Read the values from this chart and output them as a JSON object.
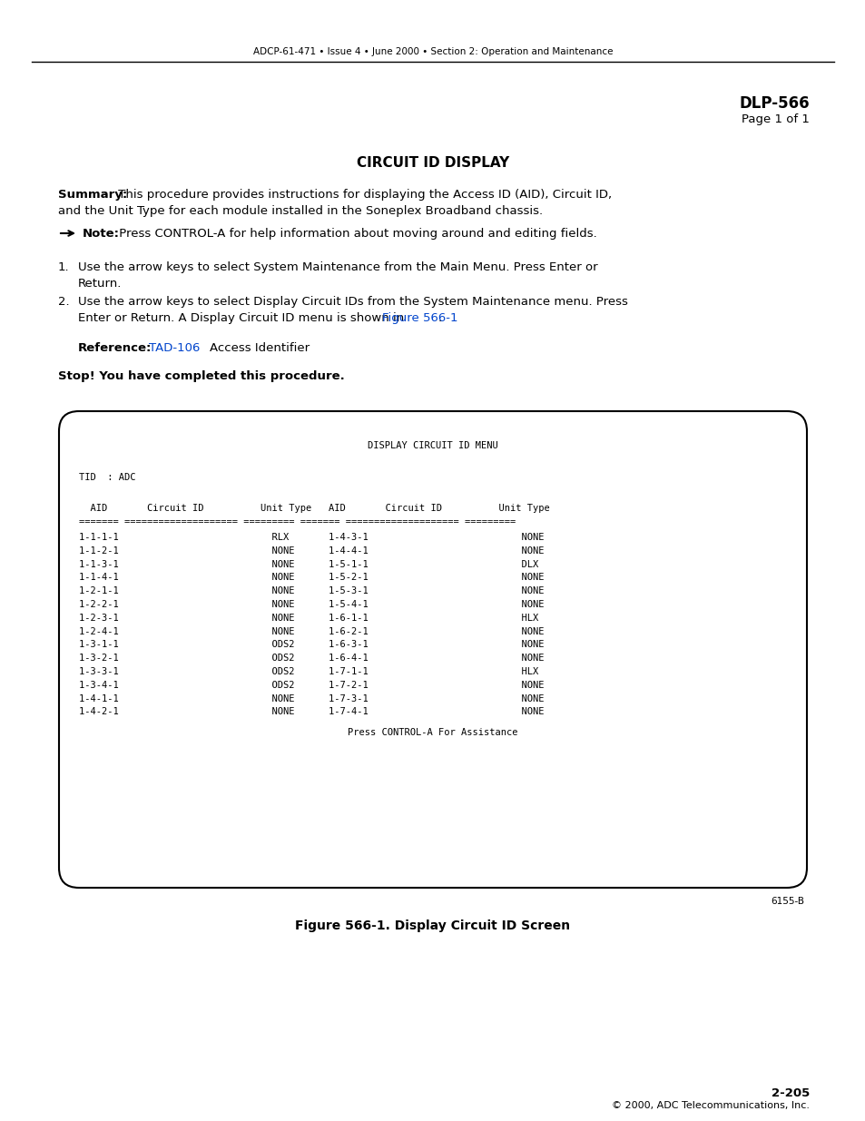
{
  "header_line": "ADCP-61-471 • Issue 4 • June 2000 • Section 2: Operation and Maintenance",
  "dlp_title": "DLP-566",
  "dlp_page": "Page 1 of 1",
  "section_title": "CIRCUIT ID DISPLAY",
  "summary_bold": "Summary:",
  "summary_line1_rest": " This procedure provides instructions for displaying the Access ID (AID), Circuit ID,",
  "summary_line2": "and the Unit Type for each module installed in the Soneplex Broadband chassis.",
  "note_bold": "Note:",
  "note_rest": " Press CONTROL-A for help information about moving around and editing fields.",
  "step1_num": "1.",
  "step1_line1": "Use the arrow keys to select System Maintenance from the Main Menu. Press Enter or",
  "step1_line2": "Return.",
  "step2_num": "2.",
  "step2_line1": "Use the arrow keys to select Display Circuit IDs from the System Maintenance menu. Press",
  "step2_line2_pre": "Enter or Return. A Display Circuit ID menu is shown in ",
  "step2_link": "Figure 566-1",
  "step2_line2_post": ".",
  "reference_label": "Reference:",
  "reference_link": "TAD-106",
  "reference_rest": "    Access Identifier",
  "stop_text": "Stop! You have completed this procedure.",
  "terminal_title": "DISPLAY CIRCUIT ID MENU",
  "terminal_tid": "TID  : ADC",
  "terminal_header": "  AID       Circuit ID          Unit Type   AID       Circuit ID          Unit Type",
  "terminal_sep": "======= ==================== ========= ======= ==================== =========",
  "terminal_rows": [
    "1-1-1-1                           RLX       1-4-3-1                           NONE",
    "1-1-2-1                           NONE      1-4-4-1                           NONE",
    "1-1-3-1                           NONE      1-5-1-1                           DLX",
    "1-1-4-1                           NONE      1-5-2-1                           NONE",
    "1-2-1-1                           NONE      1-5-3-1                           NONE",
    "1-2-2-1                           NONE      1-5-4-1                           NONE",
    "1-2-3-1                           NONE      1-6-1-1                           HLX",
    "1-2-4-1                           NONE      1-6-2-1                           NONE",
    "1-3-1-1                           ODS2      1-6-3-1                           NONE",
    "1-3-2-1                           ODS2      1-6-4-1                           NONE",
    "1-3-3-1                           ODS2      1-7-1-1                           HLX",
    "1-3-4-1                           ODS2      1-7-2-1                           NONE",
    "1-4-1-1                           NONE      1-7-3-1                           NONE",
    "1-4-2-1                           NONE      1-7-4-1                           NONE"
  ],
  "terminal_footer": "Press CONTROL-A For Assistance",
  "figure_ref": "6155-B",
  "figure_caption": "Figure 566-1. Display Circuit ID Screen",
  "page_number": "2-205",
  "copyright": "© 2000, ADC Telecommunications, Inc.",
  "blue_color": "#0044CC",
  "black_color": "#000000",
  "bg_color": "#FFFFFF"
}
